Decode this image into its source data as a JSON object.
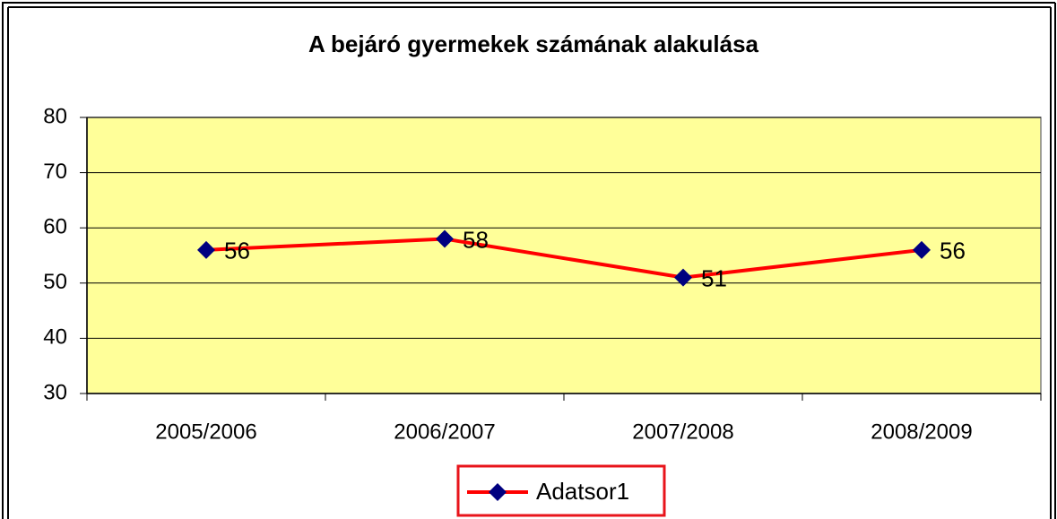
{
  "chart_data": {
    "type": "line",
    "title": "A bejáró gyermekek számának alakulása",
    "categories": [
      "2005/2006",
      "2006/2007",
      "2007/2008",
      "2008/2009"
    ],
    "series": [
      {
        "name": "Adatsor1",
        "color": "#ff0000",
        "marker_color": "#000080",
        "values": [
          56,
          58,
          51,
          56
        ]
      }
    ],
    "ylim": [
      30,
      80
    ],
    "yticks": [
      30,
      40,
      50,
      60,
      70,
      80
    ],
    "grid": true,
    "legend": "bottom",
    "plot_background": "#ffff99"
  }
}
